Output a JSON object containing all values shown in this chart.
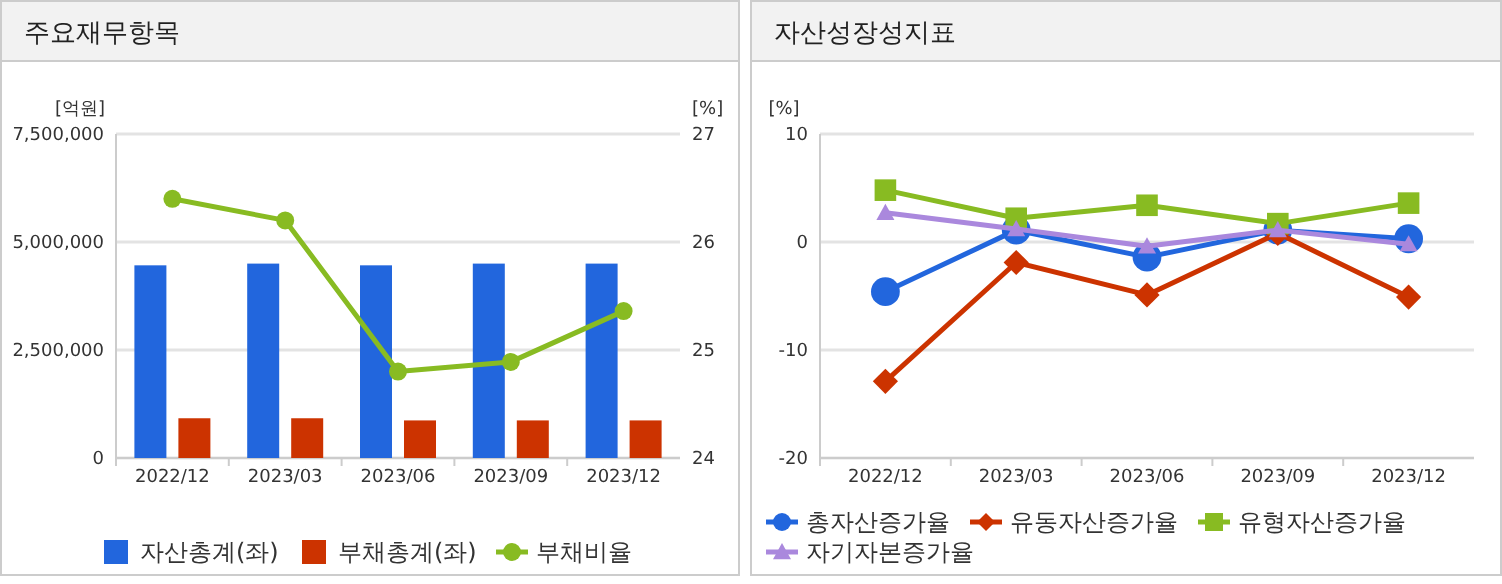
{
  "chart_data": [
    {
      "type": "bar",
      "title": "주요재무항목",
      "ylabel": "[억원]",
      "y2label": "[%]",
      "categories": [
        "2022/12",
        "2023/03",
        "2023/06",
        "2023/09",
        "2023/12"
      ],
      "series": [
        {
          "name": "자산총계(좌)",
          "color": "#2266dd",
          "values": [
            4460000,
            4500000,
            4460000,
            4500000,
            4500000
          ]
        },
        {
          "name": "부채총계(좌)",
          "color": "#cc3300",
          "values": [
            920000,
            920000,
            870000,
            870000,
            870000
          ]
        },
        {
          "name": "부채비율",
          "type": "line",
          "axis": "y2",
          "color": "#88bb22",
          "marker": "circle",
          "values": [
            26.4,
            26.2,
            24.8,
            24.89,
            25.36
          ]
        }
      ],
      "ylim": [
        0,
        7500000
      ],
      "yticks": [
        {
          "value": 0,
          "label": "0"
        },
        {
          "value": 2500000,
          "label": "2,500,000"
        },
        {
          "value": 5000000,
          "label": "5,000,000"
        },
        {
          "value": 7500000,
          "label": "7,500,000"
        }
      ],
      "y2lim": [
        24,
        27
      ],
      "y2ticks": [
        24,
        25,
        26,
        27
      ],
      "grid": "y",
      "legend": "bottom"
    },
    {
      "type": "line",
      "title": "자산성장성지표",
      "ylabel": "[%]",
      "categories": [
        "2022/12",
        "2023/03",
        "2023/06",
        "2023/09",
        "2023/12"
      ],
      "series": [
        {
          "name": "총자산증가율",
          "color": "#2266dd",
          "marker": "circle",
          "values": [
            -4.6,
            1.1,
            -1.4,
            1.1,
            0.3
          ]
        },
        {
          "name": "유동자산증가율",
          "color": "#cc3300",
          "marker": "diamond",
          "values": [
            -12.9,
            -1.9,
            -4.9,
            0.8,
            -5.1
          ]
        },
        {
          "name": "유형자산증가율",
          "color": "#88bb22",
          "marker": "square",
          "values": [
            4.8,
            2.2,
            3.4,
            1.7,
            3.6
          ]
        },
        {
          "name": "자기자본증가율",
          "color": "#aa88dd",
          "marker": "triangle",
          "values": [
            2.7,
            1.2,
            -0.4,
            1.1,
            -0.2
          ]
        }
      ],
      "ylim": [
        -20,
        10
      ],
      "yticks": [
        -20,
        -10,
        0,
        10
      ],
      "grid": "y",
      "legend": "bottom"
    }
  ]
}
